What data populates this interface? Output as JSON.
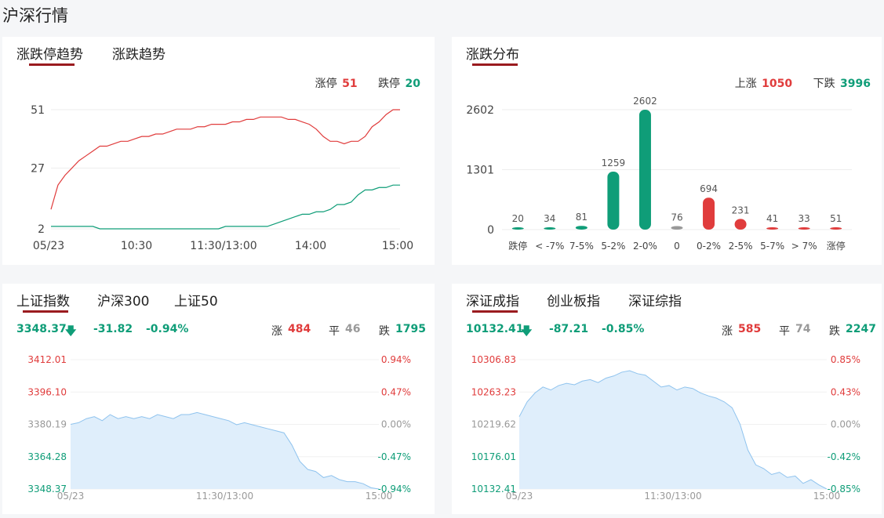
{
  "page_title": "沪深行情",
  "colors": {
    "up": "#e03c3c",
    "down": "#0f9d78",
    "flat": "#999999",
    "accent": "#9a1b1f",
    "area_fill": "#dfeefb",
    "area_line": "#8fc3ee"
  },
  "limit_card": {
    "tabs": [
      "涨跌停趋势",
      "涨跌趋势"
    ],
    "active_tab": 0,
    "limit_up_label": "涨停",
    "limit_up_value": "51",
    "limit_down_label": "跌停",
    "limit_down_value": "20",
    "y_ticks": [
      "51",
      "27",
      "2"
    ],
    "x_ticks": [
      "05/23",
      "10:30",
      "11:30/13:00",
      "14:00",
      "15:00"
    ],
    "chart_data": {
      "type": "line",
      "x_label_ticks": [
        "05/23",
        "10:30",
        "11:30/13:00",
        "14:00",
        "15:00"
      ],
      "ylim": [
        2,
        51
      ],
      "series": [
        {
          "name": "涨停",
          "color": "#e03c3c",
          "values": [
            10,
            20,
            24,
            27,
            30,
            32,
            34,
            36,
            36,
            37,
            38,
            38,
            39,
            40,
            40,
            41,
            41,
            42,
            43,
            43,
            43,
            44,
            44,
            45,
            45,
            45,
            46,
            46,
            47,
            47,
            48,
            48,
            48,
            48,
            47,
            47,
            46,
            45,
            43,
            40,
            38,
            38,
            37,
            38,
            38,
            40,
            44,
            46,
            49,
            51,
            51
          ]
        },
        {
          "name": "跌停",
          "color": "#0f9d78",
          "values": [
            3,
            3,
            3,
            3,
            3,
            3,
            3,
            2,
            2,
            2,
            2,
            2,
            2,
            2,
            2,
            2,
            2,
            2,
            2,
            2,
            2,
            2,
            2,
            2,
            2,
            3,
            3,
            3,
            3,
            3,
            3,
            3,
            4,
            5,
            6,
            7,
            8,
            8,
            9,
            9,
            10,
            12,
            12,
            13,
            16,
            18,
            18,
            19,
            19,
            20,
            20
          ]
        }
      ]
    }
  },
  "dist_card": {
    "title": "涨跌分布",
    "up_label": "上涨",
    "up_value": "1050",
    "down_label": "下跌",
    "down_value": "3996",
    "y_ticks": [
      "2602",
      "1301",
      "0"
    ],
    "chart_data": {
      "type": "bar",
      "categories": [
        "跌停",
        "< -7%",
        "7-5%",
        "5-2%",
        "2-0%",
        "0",
        "0-2%",
        "2-5%",
        "5-7%",
        "> 7%",
        "涨停"
      ],
      "values": [
        20,
        34,
        81,
        1259,
        2602,
        76,
        694,
        231,
        41,
        33,
        51
      ],
      "ylim": [
        0,
        2602
      ]
    }
  },
  "sh_card": {
    "tabs": [
      "上证指数",
      "沪深300",
      "上证50"
    ],
    "active_tab": 0,
    "price": "3348.37",
    "change": "-31.82",
    "pct": "-0.94%",
    "up_label": "涨",
    "up_value": "484",
    "flat_label": "平",
    "flat_value": "46",
    "down_label": "跌",
    "down_value": "1795",
    "left_ticks": [
      "3412.01",
      "3396.10",
      "3380.19",
      "3364.28",
      "3348.37"
    ],
    "right_ticks": [
      "0.94%",
      "0.47%",
      "0.00%",
      "-0.47%",
      "-0.94%"
    ],
    "x_ticks": [
      "05/23",
      "11:30/13:00",
      "15:00"
    ],
    "chart_data": {
      "type": "area",
      "ylim": [
        3348.37,
        3412.01
      ],
      "values": [
        3380.19,
        3381,
        3383,
        3384,
        3382,
        3385,
        3383,
        3384,
        3383,
        3384,
        3383,
        3385,
        3384,
        3383,
        3385,
        3385,
        3386,
        3385,
        3384,
        3383,
        3382,
        3380,
        3381,
        3380,
        3379,
        3378,
        3377,
        3376,
        3370,
        3362,
        3358,
        3357,
        3354,
        3355,
        3353,
        3352,
        3352,
        3351,
        3349,
        3348.37
      ]
    }
  },
  "sz_card": {
    "tabs": [
      "深证成指",
      "创业板指",
      "深证综指"
    ],
    "active_tab": 0,
    "price": "10132.41",
    "change": "-87.21",
    "pct": "-0.85%",
    "up_label": "涨",
    "up_value": "585",
    "flat_label": "平",
    "flat_value": "74",
    "down_label": "跌",
    "down_value": "2247",
    "left_ticks": [
      "10306.83",
      "10263.23",
      "10219.62",
      "10176.01",
      "10132.41"
    ],
    "right_ticks": [
      "0.85%",
      "0.43%",
      "0.00%",
      "-0.42%",
      "-0.85%"
    ],
    "x_ticks": [
      "05/23",
      "11:30/13:00",
      "15:00"
    ],
    "chart_data": {
      "type": "area",
      "ylim": [
        10132.41,
        10306.83
      ],
      "values": [
        10230,
        10250,
        10262,
        10270,
        10266,
        10272,
        10275,
        10273,
        10278,
        10280,
        10276,
        10282,
        10285,
        10290,
        10292,
        10288,
        10286,
        10278,
        10270,
        10272,
        10266,
        10270,
        10268,
        10262,
        10258,
        10255,
        10250,
        10242,
        10220,
        10185,
        10165,
        10160,
        10152,
        10155,
        10148,
        10150,
        10140,
        10145,
        10138,
        10132.41
      ]
    }
  }
}
